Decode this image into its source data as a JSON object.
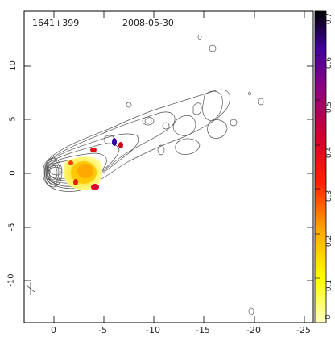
{
  "header": {
    "source_name": "1641+399",
    "date": "2008-05-30"
  },
  "x_axis": {
    "ticks": [
      "0",
      "-5",
      "-10",
      "-15",
      "-20",
      "-25"
    ],
    "tick_values": [
      0,
      -5,
      -10,
      -15,
      -20,
      -25
    ]
  },
  "y_axis": {
    "ticks": [
      "10",
      "5",
      "0",
      "-5",
      "-10"
    ],
    "tick_values": [
      10,
      5,
      0,
      -5,
      -10
    ]
  },
  "colorbar": {
    "ticks": [
      "0.7",
      "0.6",
      "0.5",
      "0.4",
      "0.3",
      "0.2",
      "0.1",
      "0"
    ],
    "tick_values": [
      0.7,
      0.6,
      0.5,
      0.4,
      0.3,
      0.2,
      0.1,
      0
    ],
    "range": [
      0,
      0.7
    ],
    "colors": [
      "#ffffc0",
      "#ffff00",
      "#ffa500",
      "#ff2000",
      "#d00030",
      "#900080",
      "#4000a0",
      "#000000"
    ]
  },
  "contour_color": "#555555"
}
